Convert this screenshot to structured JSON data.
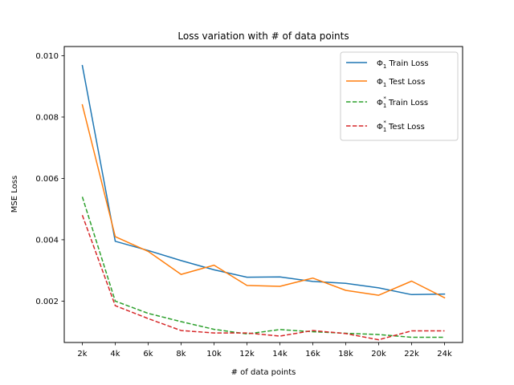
{
  "chart_data": {
    "type": "line",
    "title": "Loss variation with # of data points",
    "xlabel": "# of data points",
    "ylabel": "MSE Loss",
    "categories": [
      "2k",
      "4k",
      "6k",
      "8k",
      "10k",
      "12k",
      "14k",
      "16k",
      "18k",
      "20k",
      "22k",
      "24k"
    ],
    "ylim": [
      0.00065,
      0.0103
    ],
    "yticks": [
      0.002,
      0.004,
      0.006,
      0.008,
      0.01
    ],
    "ytick_labels": [
      "0.002",
      "0.004",
      "0.006",
      "0.008",
      "0.010"
    ],
    "grid": false,
    "legend_position": "upper right",
    "series": [
      {
        "name": "Φ1 Train Loss",
        "legend_main": "Φ",
        "legend_sub": "1",
        "legend_sup": "",
        "legend_rest": " Train Loss",
        "color": "#1f77b4",
        "dashed": false,
        "values": [
          0.00968,
          0.00395,
          0.00365,
          0.00332,
          0.00302,
          0.00278,
          0.00279,
          0.00264,
          0.00258,
          0.00243,
          0.00221,
          0.00223
        ]
      },
      {
        "name": "Φ1 Test Loss",
        "legend_main": "Φ",
        "legend_sub": "1",
        "legend_sup": "",
        "legend_rest": " Test Loss",
        "color": "#ff7f0e",
        "dashed": false,
        "values": [
          0.0084,
          0.0041,
          0.00362,
          0.00287,
          0.00317,
          0.00251,
          0.00248,
          0.00275,
          0.00235,
          0.00219,
          0.00265,
          0.00211
        ]
      },
      {
        "name": "Φ1* Train Loss",
        "legend_main": "Φ",
        "legend_sub": "1",
        "legend_sup": "*",
        "legend_rest": " Train Loss",
        "color": "#2ca02c",
        "dashed": true,
        "values": [
          0.0054,
          0.002,
          0.0016,
          0.00133,
          0.00108,
          0.00093,
          0.00107,
          0.001,
          0.00095,
          0.00091,
          0.00082,
          0.00082
        ]
      },
      {
        "name": "Φ1* Test Loss",
        "legend_main": "Φ",
        "legend_sub": "1",
        "legend_sup": "*",
        "legend_rest": " Test Loss",
        "color": "#d62728",
        "dashed": true,
        "values": [
          0.0048,
          0.00185,
          0.00143,
          0.00104,
          0.00096,
          0.00096,
          0.00086,
          0.00104,
          0.00094,
          0.00074,
          0.00103,
          0.00103
        ]
      }
    ]
  }
}
